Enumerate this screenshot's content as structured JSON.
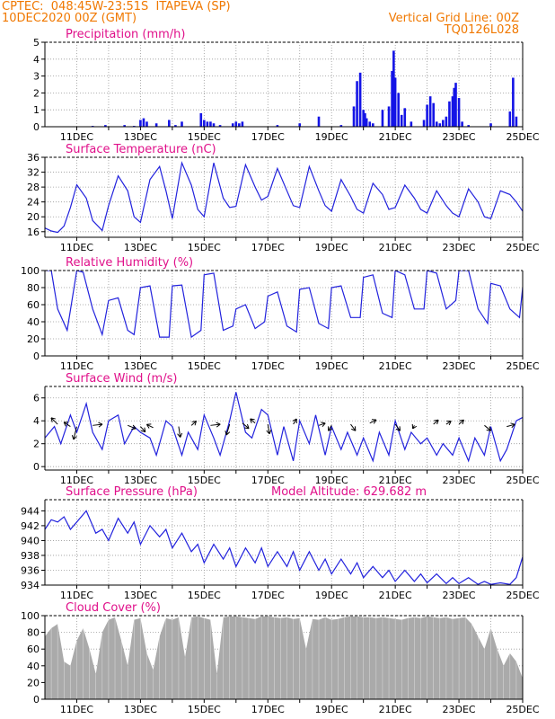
{
  "header": {
    "line1_left": "CPTEC:  048:45W-23:51S  ITAPEVA (SP)",
    "line2_left": "10DEC2020 00Z (GMT)",
    "line1_right": "Vertical Grid Line: 00Z",
    "line2_right": "TQ0126L028"
  },
  "colors": {
    "header": "#f07800",
    "title": "#e0108a",
    "line": "#2222dd",
    "bar": "#1414e6",
    "cloud": "#aaaaaa",
    "grid": "#999999"
  },
  "x_ticks": [
    "11DEC",
    "13DEC",
    "15DEC",
    "17DEC",
    "19DEC",
    "21DEC",
    "23DEC",
    "25DEC"
  ],
  "chart_data": [
    {
      "id": "precip",
      "type": "bar",
      "title": "Precipitation (mm/h)",
      "xlabel": "",
      "ylabel": "",
      "ylim": [
        0,
        5
      ],
      "yticks": [
        0,
        1,
        2,
        3,
        4,
        5
      ],
      "x_range_days": [
        10,
        25
      ],
      "x": [
        11.5,
        11.9,
        12.5,
        12.8,
        13.0,
        13.1,
        13.2,
        13.5,
        13.9,
        14.1,
        14.3,
        14.9,
        15.0,
        15.1,
        15.2,
        15.3,
        15.5,
        15.9,
        16.0,
        16.1,
        16.2,
        17.3,
        18.0,
        18.6,
        19.3,
        19.7,
        19.8,
        19.9,
        20.0,
        20.05,
        20.1,
        20.2,
        20.3,
        20.6,
        20.8,
        20.9,
        20.95,
        21.0,
        21.1,
        21.2,
        21.3,
        21.5,
        21.9,
        22.0,
        22.1,
        22.2,
        22.3,
        22.4,
        22.5,
        22.6,
        22.7,
        22.8,
        22.85,
        22.9,
        23.0,
        23.1,
        23.3,
        24.0,
        24.6,
        24.7,
        24.8
      ],
      "values": [
        0.05,
        0.1,
        0.1,
        0.05,
        0.4,
        0.5,
        0.3,
        0.2,
        0.4,
        0.1,
        0.3,
        0.8,
        0.4,
        0.3,
        0.3,
        0.2,
        0.1,
        0.2,
        0.3,
        0.2,
        0.3,
        0.1,
        0.2,
        0.6,
        0.1,
        1.2,
        2.7,
        3.2,
        1.0,
        0.8,
        0.5,
        0.3,
        0.2,
        1.0,
        1.2,
        3.3,
        4.5,
        2.9,
        2.0,
        0.7,
        1.1,
        0.3,
        0.4,
        1.3,
        1.8,
        1.4,
        0.3,
        0.2,
        0.4,
        0.6,
        1.5,
        1.8,
        2.3,
        2.6,
        1.7,
        0.3,
        0.1,
        0.2,
        0.9,
        2.9,
        0.6
      ]
    },
    {
      "id": "temp",
      "type": "line",
      "title": "Surface Temperature (nC)",
      "xlabel": "",
      "ylabel": "",
      "ylim": [
        14.5,
        36
      ],
      "yticks": [
        16,
        20,
        24,
        28,
        32,
        36
      ],
      "x_range_days": [
        10,
        25
      ],
      "x": [
        10.0,
        10.2,
        10.4,
        10.6,
        10.8,
        11.0,
        11.3,
        11.5,
        11.8,
        12.0,
        12.3,
        12.6,
        12.8,
        13.0,
        13.3,
        13.6,
        13.8,
        14.0,
        14.3,
        14.6,
        14.8,
        15.0,
        15.3,
        15.6,
        15.8,
        16.0,
        16.3,
        16.6,
        16.8,
        17.0,
        17.3,
        17.6,
        17.8,
        18.0,
        18.3,
        18.6,
        18.8,
        19.0,
        19.3,
        19.6,
        19.8,
        20.0,
        20.3,
        20.6,
        20.8,
        21.0,
        21.3,
        21.6,
        21.8,
        22.0,
        22.3,
        22.6,
        22.8,
        23.0,
        23.3,
        23.6,
        23.8,
        24.0,
        24.3,
        24.6,
        24.8,
        25.0
      ],
      "values": [
        17.0,
        16.2,
        15.8,
        17.5,
        22.5,
        28.6,
        25.0,
        19.0,
        16.3,
        23.0,
        31.0,
        27.0,
        20.0,
        18.5,
        30.0,
        33.5,
        27.0,
        19.5,
        34.5,
        28.5,
        22.0,
        20.0,
        34.5,
        25.0,
        22.5,
        22.8,
        34.0,
        28.0,
        24.5,
        25.5,
        33.0,
        27.0,
        23.0,
        22.5,
        33.5,
        27.0,
        23.0,
        21.5,
        30.0,
        25.5,
        22.0,
        21.0,
        29.0,
        26.0,
        22.0,
        22.5,
        28.5,
        25.0,
        22.0,
        21.0,
        27.0,
        23.0,
        21.0,
        20.0,
        27.5,
        24.0,
        20.0,
        19.5,
        27.0,
        26.0,
        24.0,
        21.5
      ]
    },
    {
      "id": "rh",
      "type": "line",
      "title": "Relative Humidity (%)",
      "xlabel": "",
      "ylabel": "",
      "ylim": [
        0,
        100
      ],
      "yticks": [
        0,
        20,
        40,
        60,
        80,
        100
      ],
      "x_range_days": [
        10,
        25
      ],
      "x": [
        10.0,
        10.2,
        10.4,
        10.7,
        11.0,
        11.2,
        11.5,
        11.8,
        12.0,
        12.3,
        12.6,
        12.8,
        13.0,
        13.3,
        13.6,
        13.9,
        14.0,
        14.3,
        14.6,
        14.9,
        15.0,
        15.3,
        15.6,
        15.9,
        16.0,
        16.3,
        16.6,
        16.9,
        17.0,
        17.3,
        17.6,
        17.9,
        18.0,
        18.3,
        18.6,
        18.9,
        19.0,
        19.3,
        19.6,
        19.9,
        20.0,
        20.3,
        20.6,
        20.9,
        21.0,
        21.3,
        21.6,
        21.9,
        22.0,
        22.3,
        22.6,
        22.9,
        23.0,
        23.3,
        23.6,
        23.9,
        24.0,
        24.3,
        24.6,
        24.9,
        25.0
      ],
      "values": [
        100,
        100,
        55,
        30,
        100,
        98,
        55,
        25,
        65,
        68,
        30,
        25,
        80,
        82,
        22,
        22,
        82,
        83,
        22,
        30,
        95,
        97,
        30,
        35,
        55,
        60,
        32,
        40,
        70,
        75,
        35,
        28,
        78,
        80,
        38,
        32,
        80,
        82,
        45,
        45,
        92,
        95,
        50,
        45,
        100,
        95,
        55,
        55,
        100,
        97,
        55,
        65,
        100,
        100,
        55,
        38,
        85,
        82,
        55,
        45,
        80
      ]
    },
    {
      "id": "wind",
      "type": "line",
      "title": "Surface Wind (m/s)",
      "xlabel": "",
      "ylabel": "",
      "ylim": [
        -0.3,
        7
      ],
      "yticks": [
        0,
        2,
        4,
        6
      ],
      "x_range_days": [
        10,
        25
      ],
      "x": [
        10.0,
        10.3,
        10.5,
        10.8,
        11.0,
        11.3,
        11.5,
        11.8,
        12.0,
        12.3,
        12.5,
        12.8,
        13.0,
        13.3,
        13.5,
        13.8,
        14.0,
        14.3,
        14.5,
        14.8,
        15.0,
        15.3,
        15.5,
        15.8,
        16.0,
        16.3,
        16.5,
        16.8,
        17.0,
        17.3,
        17.5,
        17.8,
        18.0,
        18.3,
        18.5,
        18.8,
        19.0,
        19.3,
        19.5,
        19.8,
        20.0,
        20.3,
        20.5,
        20.8,
        21.0,
        21.3,
        21.5,
        21.8,
        22.0,
        22.3,
        22.5,
        22.8,
        23.0,
        23.3,
        23.5,
        23.8,
        24.0,
        24.3,
        24.5,
        24.8,
        25.0
      ],
      "values": [
        2.5,
        3.5,
        2.0,
        4.5,
        3.0,
        5.5,
        3.0,
        1.5,
        4.0,
        4.5,
        2.0,
        3.5,
        3.0,
        2.5,
        1.0,
        4.0,
        3.5,
        1.0,
        3.0,
        1.5,
        4.5,
        2.5,
        1.0,
        4.0,
        6.5,
        3.0,
        2.5,
        5.0,
        4.5,
        1.0,
        3.5,
        0.5,
        4.0,
        2.0,
        4.5,
        1.0,
        3.5,
        1.5,
        3.0,
        1.0,
        2.5,
        0.5,
        3.0,
        1.0,
        4.0,
        1.5,
        3.0,
        2.0,
        2.5,
        1.0,
        2.0,
        1.0,
        2.5,
        0.5,
        2.5,
        1.0,
        3.5,
        0.5,
        1.5,
        4.0,
        4.3
      ],
      "vectors": [
        {
          "x": 10.4,
          "y": 3.7,
          "dx": -0.4,
          "dy": 0.6
        },
        {
          "x": 10.8,
          "y": 3.5,
          "dx": -0.4,
          "dy": 0.4
        },
        {
          "x": 11.0,
          "y": 3.5,
          "dx": -0.2,
          "dy": -1.2
        },
        {
          "x": 11.5,
          "y": 3.6,
          "dx": 0.6,
          "dy": 0.1
        },
        {
          "x": 12.6,
          "y": 3.6,
          "dx": 0.5,
          "dy": -0.3
        },
        {
          "x": 13.0,
          "y": 3.5,
          "dx": 0.3,
          "dy": -0.5
        },
        {
          "x": 13.4,
          "y": 3.4,
          "dx": -0.4,
          "dy": 0.3
        },
        {
          "x": 14.2,
          "y": 3.5,
          "dx": 0.1,
          "dy": -1.0
        },
        {
          "x": 14.6,
          "y": 3.6,
          "dx": 0.3,
          "dy": 0.4
        },
        {
          "x": 15.2,
          "y": 3.6,
          "dx": 0.6,
          "dy": 0.1
        },
        {
          "x": 15.8,
          "y": 3.7,
          "dx": -0.2,
          "dy": -1.0
        },
        {
          "x": 16.2,
          "y": 3.8,
          "dx": 0.4,
          "dy": -0.5
        },
        {
          "x": 16.6,
          "y": 3.8,
          "dx": -0.3,
          "dy": 0.4
        },
        {
          "x": 17.0,
          "y": 3.7,
          "dx": 0.1,
          "dy": -0.9
        },
        {
          "x": 17.8,
          "y": 3.7,
          "dx": 0.2,
          "dy": 0.5
        },
        {
          "x": 18.6,
          "y": 3.6,
          "dx": 0.4,
          "dy": 0.2
        },
        {
          "x": 19.0,
          "y": 3.6,
          "dx": -0.2,
          "dy": -0.5
        },
        {
          "x": 19.6,
          "y": 3.7,
          "dx": 0.3,
          "dy": -0.6
        },
        {
          "x": 20.2,
          "y": 3.8,
          "dx": 0.4,
          "dy": 0.3
        },
        {
          "x": 21.0,
          "y": 3.7,
          "dx": 0.3,
          "dy": -0.6
        },
        {
          "x": 21.6,
          "y": 3.6,
          "dx": -0.1,
          "dy": -0.3
        },
        {
          "x": 22.2,
          "y": 3.7,
          "dx": 0.3,
          "dy": 0.4
        },
        {
          "x": 22.6,
          "y": 3.7,
          "dx": 0.3,
          "dy": 0.3
        },
        {
          "x": 23.0,
          "y": 3.7,
          "dx": 0.3,
          "dy": 0.4
        },
        {
          "x": 23.8,
          "y": 3.6,
          "dx": 0.4,
          "dy": -0.5
        },
        {
          "x": 24.5,
          "y": 3.5,
          "dx": 0.5,
          "dy": 0.2
        }
      ]
    },
    {
      "id": "pres",
      "type": "line",
      "title": "Surface Pressure (hPa)",
      "subtitle": "Model Altitude: 629.682 m",
      "xlabel": "",
      "ylabel": "",
      "ylim": [
        934,
        945.5
      ],
      "yticks": [
        934,
        936,
        938,
        940,
        942,
        944
      ],
      "x_range_days": [
        10,
        25
      ],
      "x": [
        10.0,
        10.2,
        10.4,
        10.6,
        10.8,
        11.0,
        11.3,
        11.6,
        11.8,
        12.0,
        12.3,
        12.6,
        12.8,
        13.0,
        13.3,
        13.6,
        13.8,
        14.0,
        14.3,
        14.6,
        14.8,
        15.0,
        15.3,
        15.6,
        15.8,
        16.0,
        16.3,
        16.6,
        16.8,
        17.0,
        17.3,
        17.6,
        17.8,
        18.0,
        18.3,
        18.6,
        18.8,
        19.0,
        19.3,
        19.6,
        19.8,
        20.0,
        20.3,
        20.6,
        20.8,
        21.0,
        21.3,
        21.6,
        21.8,
        22.0,
        22.3,
        22.6,
        22.8,
        23.0,
        23.3,
        23.6,
        23.8,
        24.0,
        24.3,
        24.6,
        24.8,
        25.0
      ],
      "values": [
        941.5,
        942.8,
        942.5,
        943.2,
        941.5,
        942.5,
        944.0,
        941.0,
        941.5,
        940.0,
        943.0,
        941.0,
        942.5,
        939.5,
        942.0,
        940.5,
        941.5,
        939.0,
        941.0,
        938.5,
        939.5,
        937.0,
        939.5,
        937.5,
        939.0,
        936.5,
        939.0,
        937.0,
        939.0,
        936.5,
        938.5,
        936.5,
        938.5,
        936.0,
        938.5,
        936.0,
        937.5,
        935.5,
        937.5,
        935.5,
        937.0,
        935.0,
        936.5,
        935.0,
        936.0,
        934.5,
        936.0,
        934.5,
        935.5,
        934.3,
        935.5,
        934.2,
        935.0,
        934.2,
        935.0,
        934.1,
        934.5,
        934.1,
        934.3,
        934.1,
        935.0,
        937.8
      ]
    },
    {
      "id": "cloud",
      "type": "area",
      "title": "Cloud Cover (%)",
      "xlabel": "",
      "ylabel": "",
      "ylim": [
        0,
        100
      ],
      "yticks": [
        0,
        20,
        40,
        60,
        80,
        100
      ],
      "x_range_days": [
        10,
        25
      ],
      "x": [
        10.0,
        10.2,
        10.4,
        10.6,
        10.8,
        11.0,
        11.2,
        11.4,
        11.6,
        11.8,
        12.0,
        12.2,
        12.4,
        12.6,
        12.8,
        13.0,
        13.2,
        13.4,
        13.6,
        13.8,
        14.0,
        14.2,
        14.4,
        14.6,
        14.8,
        15.0,
        15.2,
        15.4,
        15.6,
        15.8,
        16.0,
        16.2,
        16.4,
        16.6,
        16.8,
        17.0,
        17.2,
        17.4,
        17.6,
        17.8,
        18.0,
        18.2,
        18.4,
        18.6,
        18.8,
        19.0,
        19.2,
        19.4,
        19.6,
        19.8,
        20.0,
        20.2,
        20.4,
        20.6,
        20.8,
        21.0,
        21.2,
        21.4,
        21.6,
        21.8,
        22.0,
        22.2,
        22.4,
        22.6,
        22.8,
        23.0,
        23.2,
        23.4,
        23.6,
        23.8,
        24.0,
        24.2,
        24.4,
        24.6,
        24.8,
        25.0
      ],
      "values": [
        75,
        85,
        90,
        45,
        40,
        70,
        85,
        60,
        30,
        80,
        95,
        98,
        70,
        40,
        95,
        97,
        55,
        35,
        75,
        97,
        95,
        98,
        50,
        98,
        99,
        97,
        95,
        30,
        98,
        99,
        99,
        98,
        97,
        96,
        99,
        99,
        98,
        97,
        98,
        96,
        97,
        60,
        96,
        95,
        98,
        95,
        96,
        98,
        99,
        99,
        98,
        98,
        97,
        98,
        97,
        96,
        95,
        97,
        98,
        97,
        99,
        98,
        97,
        98,
        96,
        97,
        98,
        90,
        75,
        60,
        85,
        60,
        40,
        55,
        45,
        25
      ]
    }
  ]
}
